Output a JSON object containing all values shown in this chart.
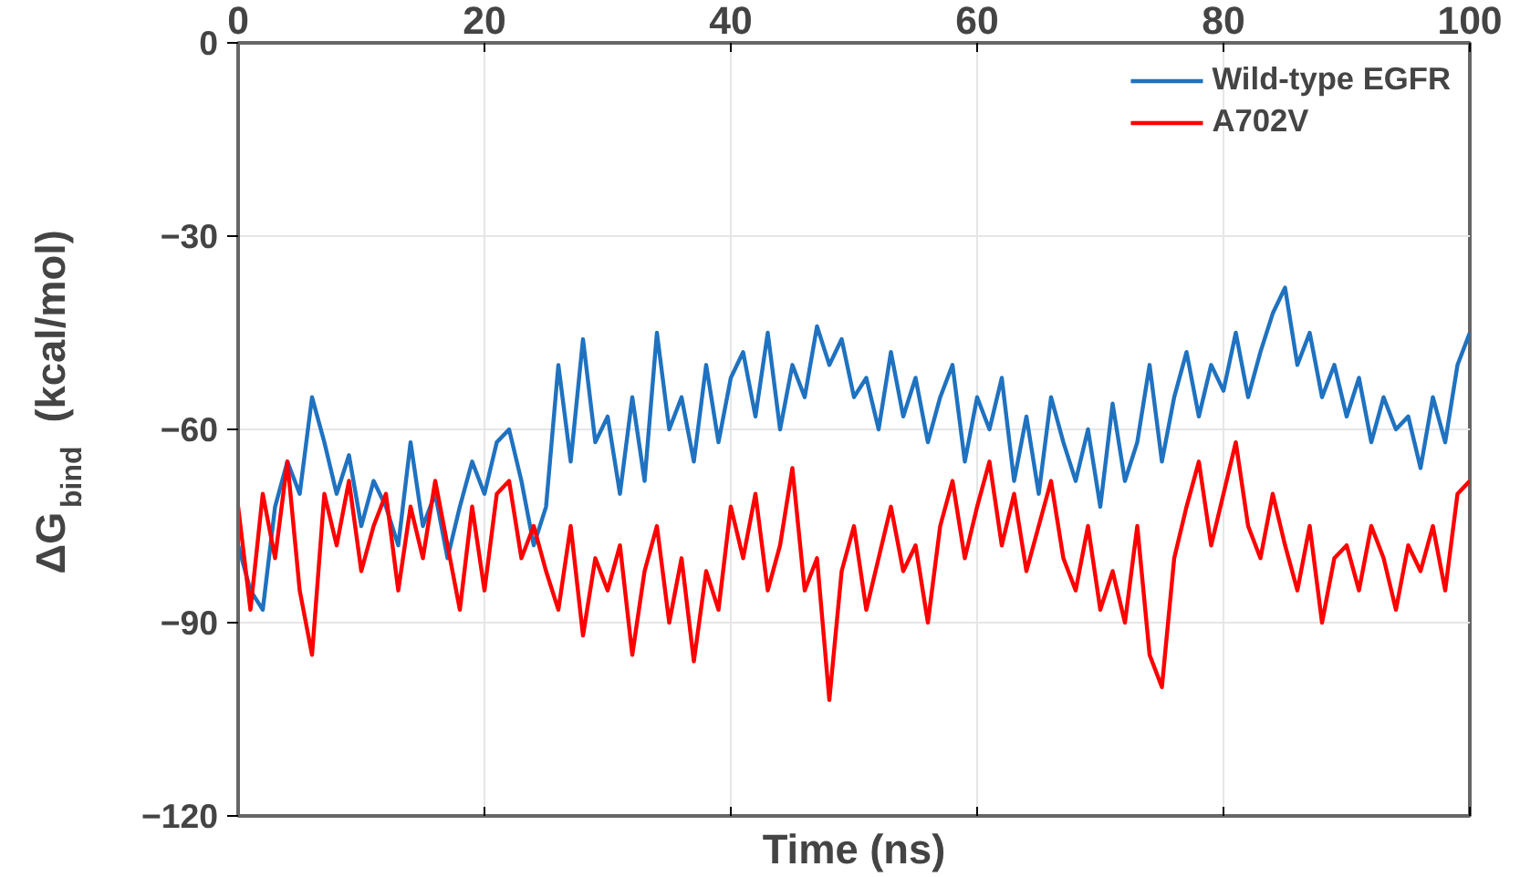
{
  "chart_data": {
    "type": "line",
    "xlabel": "Time (ns)",
    "ylabel": "ΔG$_{bind}$ (kcal/mol)",
    "xlim": [
      0,
      100
    ],
    "xticks": [
      0,
      20,
      40,
      60,
      80,
      100
    ],
    "ylim": [
      -120,
      0
    ],
    "yticks": [
      -120,
      -90,
      -60,
      -30,
      0
    ],
    "grid": true,
    "legend": "top right",
    "line_style": "solid",
    "x": [
      0,
      1,
      2,
      3,
      4,
      5,
      6,
      7,
      8,
      9,
      10,
      11,
      12,
      13,
      14,
      15,
      16,
      17,
      18,
      19,
      20,
      21,
      22,
      23,
      24,
      25,
      26,
      27,
      28,
      29,
      30,
      31,
      32,
      33,
      34,
      35,
      36,
      37,
      38,
      39,
      40,
      41,
      42,
      43,
      44,
      45,
      46,
      47,
      48,
      49,
      50,
      51,
      52,
      53,
      54,
      55,
      56,
      57,
      58,
      59,
      60,
      61,
      62,
      63,
      64,
      65,
      66,
      67,
      68,
      69,
      70,
      71,
      72,
      73,
      74,
      75,
      76,
      77,
      78,
      79,
      80,
      81,
      82,
      83,
      84,
      85,
      86,
      87,
      88,
      89,
      90,
      91,
      92,
      93,
      94,
      95,
      96,
      97,
      98,
      99,
      100
    ],
    "series": [
      {
        "name": "Wild-type EGFR",
        "color": "#1f72c0",
        "values": [
          -78,
          -85,
          -88,
          -72,
          -65,
          -70,
          -55,
          -62,
          -70,
          -64,
          -75,
          -68,
          -72,
          -78,
          -62,
          -75,
          -70,
          -80,
          -72,
          -65,
          -70,
          -62,
          -60,
          -68,
          -78,
          -72,
          -50,
          -65,
          -46,
          -62,
          -58,
          -70,
          -55,
          -68,
          -45,
          -60,
          -55,
          -65,
          -50,
          -62,
          -52,
          -48,
          -58,
          -45,
          -60,
          -50,
          -55,
          -44,
          -50,
          -46,
          -55,
          -52,
          -60,
          -48,
          -58,
          -52,
          -62,
          -55,
          -50,
          -65,
          -55,
          -60,
          -52,
          -68,
          -58,
          -70,
          -55,
          -62,
          -68,
          -60,
          -72,
          -56,
          -68,
          -62,
          -50,
          -65,
          -55,
          -48,
          -58,
          -50,
          -54,
          -45,
          -55,
          -48,
          -42,
          -38,
          -50,
          -45,
          -55,
          -50,
          -58,
          -52,
          -62,
          -55,
          -60,
          -58,
          -66,
          -55,
          -62,
          -50,
          -45
        ]
      },
      {
        "name": "A702V",
        "color": "#fe0000",
        "values": [
          -72,
          -88,
          -70,
          -80,
          -65,
          -85,
          -95,
          -70,
          -78,
          -68,
          -82,
          -75,
          -70,
          -85,
          -72,
          -80,
          -68,
          -78,
          -88,
          -72,
          -85,
          -70,
          -68,
          -80,
          -75,
          -82,
          -88,
          -75,
          -92,
          -80,
          -85,
          -78,
          -95,
          -82,
          -75,
          -90,
          -80,
          -96,
          -82,
          -88,
          -72,
          -80,
          -70,
          -85,
          -78,
          -66,
          -85,
          -80,
          -102,
          -82,
          -75,
          -88,
          -80,
          -72,
          -82,
          -78,
          -90,
          -75,
          -68,
          -80,
          -72,
          -65,
          -78,
          -70,
          -82,
          -75,
          -68,
          -80,
          -85,
          -75,
          -88,
          -82,
          -90,
          -75,
          -95,
          -100,
          -80,
          -72,
          -65,
          -78,
          -70,
          -62,
          -75,
          -80,
          -70,
          -78,
          -85,
          -75,
          -90,
          -80,
          -78,
          -85,
          -75,
          -80,
          -88,
          -78,
          -82,
          -75,
          -85,
          -70,
          -68
        ]
      }
    ]
  }
}
